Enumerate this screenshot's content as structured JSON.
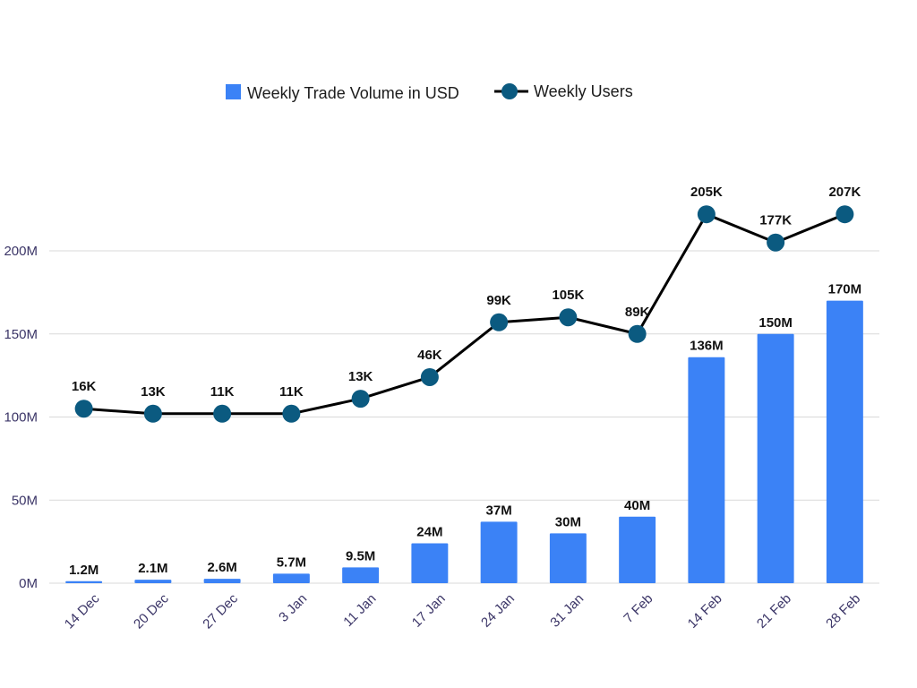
{
  "chart_data": {
    "type": "bar",
    "categories": [
      "14 Dec",
      "20 Dec",
      "27 Dec",
      "3 Jan",
      "11 Jan",
      "17 Jan",
      "24 Jan",
      "31 Jan",
      "7 Feb",
      "14 Feb",
      "21 Feb",
      "28 Feb"
    ],
    "series": [
      {
        "name": "Weekly Trade Volume in USD",
        "type": "bar",
        "values": [
          1.2,
          2.1,
          2.6,
          5.7,
          9.5,
          24,
          37,
          30,
          40,
          136,
          150,
          170
        ],
        "unit": "M",
        "labels": [
          "1.2M",
          "2.1M",
          "2.6M",
          "5.7M",
          "9.5M",
          "24M",
          "37M",
          "30M",
          "40M",
          "136M",
          "150M",
          "170M"
        ],
        "color": "#3b82f6"
      },
      {
        "name": "Weekly Users",
        "type": "line",
        "values": [
          16,
          13,
          11,
          11,
          13,
          46,
          99,
          105,
          89,
          205,
          177,
          207
        ],
        "unit": "K",
        "labels": [
          "16K",
          "13K",
          "11K",
          "11K",
          "13K",
          "46K",
          "99K",
          "105K",
          "89K",
          "205K",
          "177K",
          "207K"
        ],
        "color": "#0b5a80",
        "line_color": "#000000",
        "plot_positions": [
          105,
          102,
          102,
          102,
          111,
          124,
          157,
          160,
          150,
          222,
          205,
          222
        ]
      }
    ],
    "yticks": [
      "0M",
      "50M",
      "100M",
      "150M",
      "200M"
    ],
    "ytick_values": [
      0,
      50,
      100,
      150,
      200
    ],
    "ylim": [
      0,
      200
    ],
    "grid": true,
    "legend_position": "top-center",
    "xlabel": "",
    "ylabel": "",
    "title": ""
  },
  "colors": {
    "bar": "#3b82f6",
    "marker": "#0b5a80",
    "line": "#000000",
    "grid": "#d9d9d9",
    "tick_text": "#3b3567"
  }
}
